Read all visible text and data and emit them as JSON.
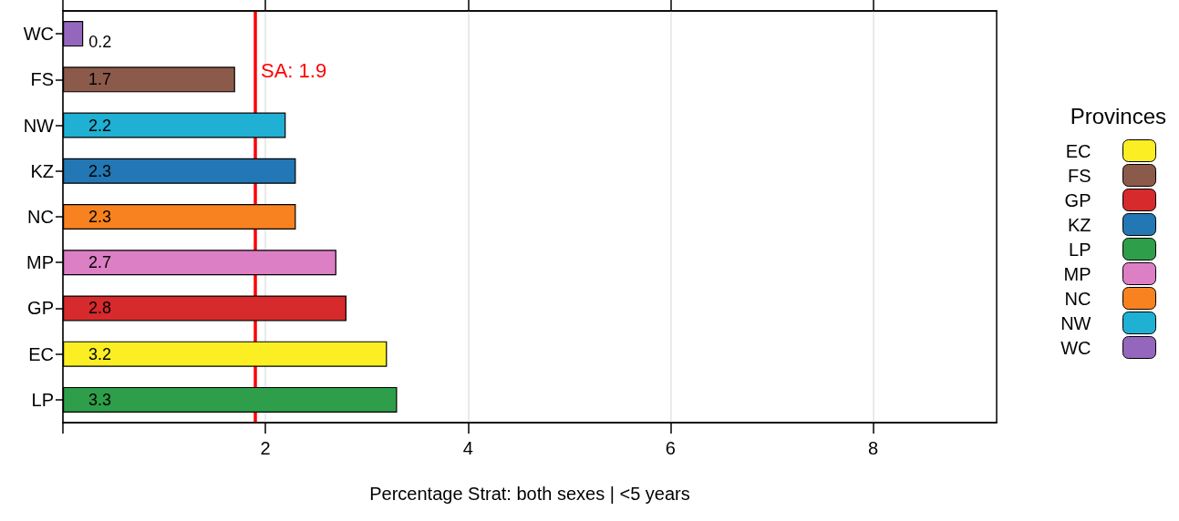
{
  "chart_data": {
    "type": "bar",
    "orientation": "horizontal",
    "xlabel": "Percentage Strat: both sexes | <5 years",
    "legend_title": "Provinces",
    "legend": "right",
    "categories": [
      "WC",
      "FS",
      "NW",
      "KZ",
      "NC",
      "MP",
      "GP",
      "EC",
      "LP"
    ],
    "series": [
      {
        "name": "EC",
        "color": "#fbee23",
        "values": [
          null,
          null,
          null,
          null,
          null,
          null,
          null,
          3.2,
          null
        ]
      },
      {
        "name": "FS",
        "color": "#8c5a4b",
        "values": [
          null,
          1.7,
          null,
          null,
          null,
          null,
          null,
          null,
          null
        ]
      },
      {
        "name": "GP",
        "color": "#d62a2c",
        "values": [
          null,
          null,
          null,
          null,
          null,
          null,
          2.8,
          null,
          null
        ]
      },
      {
        "name": "KZ",
        "color": "#2277b4",
        "values": [
          null,
          null,
          null,
          2.3,
          null,
          null,
          null,
          null,
          null
        ]
      },
      {
        "name": "LP",
        "color": "#2e9e4a",
        "values": [
          null,
          null,
          null,
          null,
          null,
          null,
          null,
          null,
          3.3
        ]
      },
      {
        "name": "MP",
        "color": "#dd7fc5",
        "values": [
          null,
          null,
          null,
          null,
          null,
          2.7,
          null,
          null,
          null
        ]
      },
      {
        "name": "NC",
        "color": "#f7821f",
        "values": [
          null,
          null,
          null,
          null,
          2.3,
          null,
          null,
          null,
          null
        ]
      },
      {
        "name": "NW",
        "color": "#1fb0d3",
        "values": [
          null,
          null,
          2.2,
          null,
          null,
          null,
          null,
          null,
          null
        ]
      },
      {
        "name": "WC",
        "color": "#9467bd",
        "values": [
          0.2,
          null,
          null,
          null,
          null,
          null,
          null,
          null,
          null
        ]
      }
    ],
    "data_labels": true,
    "xlim": [
      0,
      9.22
    ],
    "xticks": [
      {
        "value": 0,
        "label": null
      },
      2,
      4,
      6,
      8
    ],
    "grid": "x",
    "ref_lines": [
      {
        "axis": "x",
        "value": 1.9,
        "label": "SA: 1.9",
        "color": "#ff0000"
      }
    ]
  }
}
